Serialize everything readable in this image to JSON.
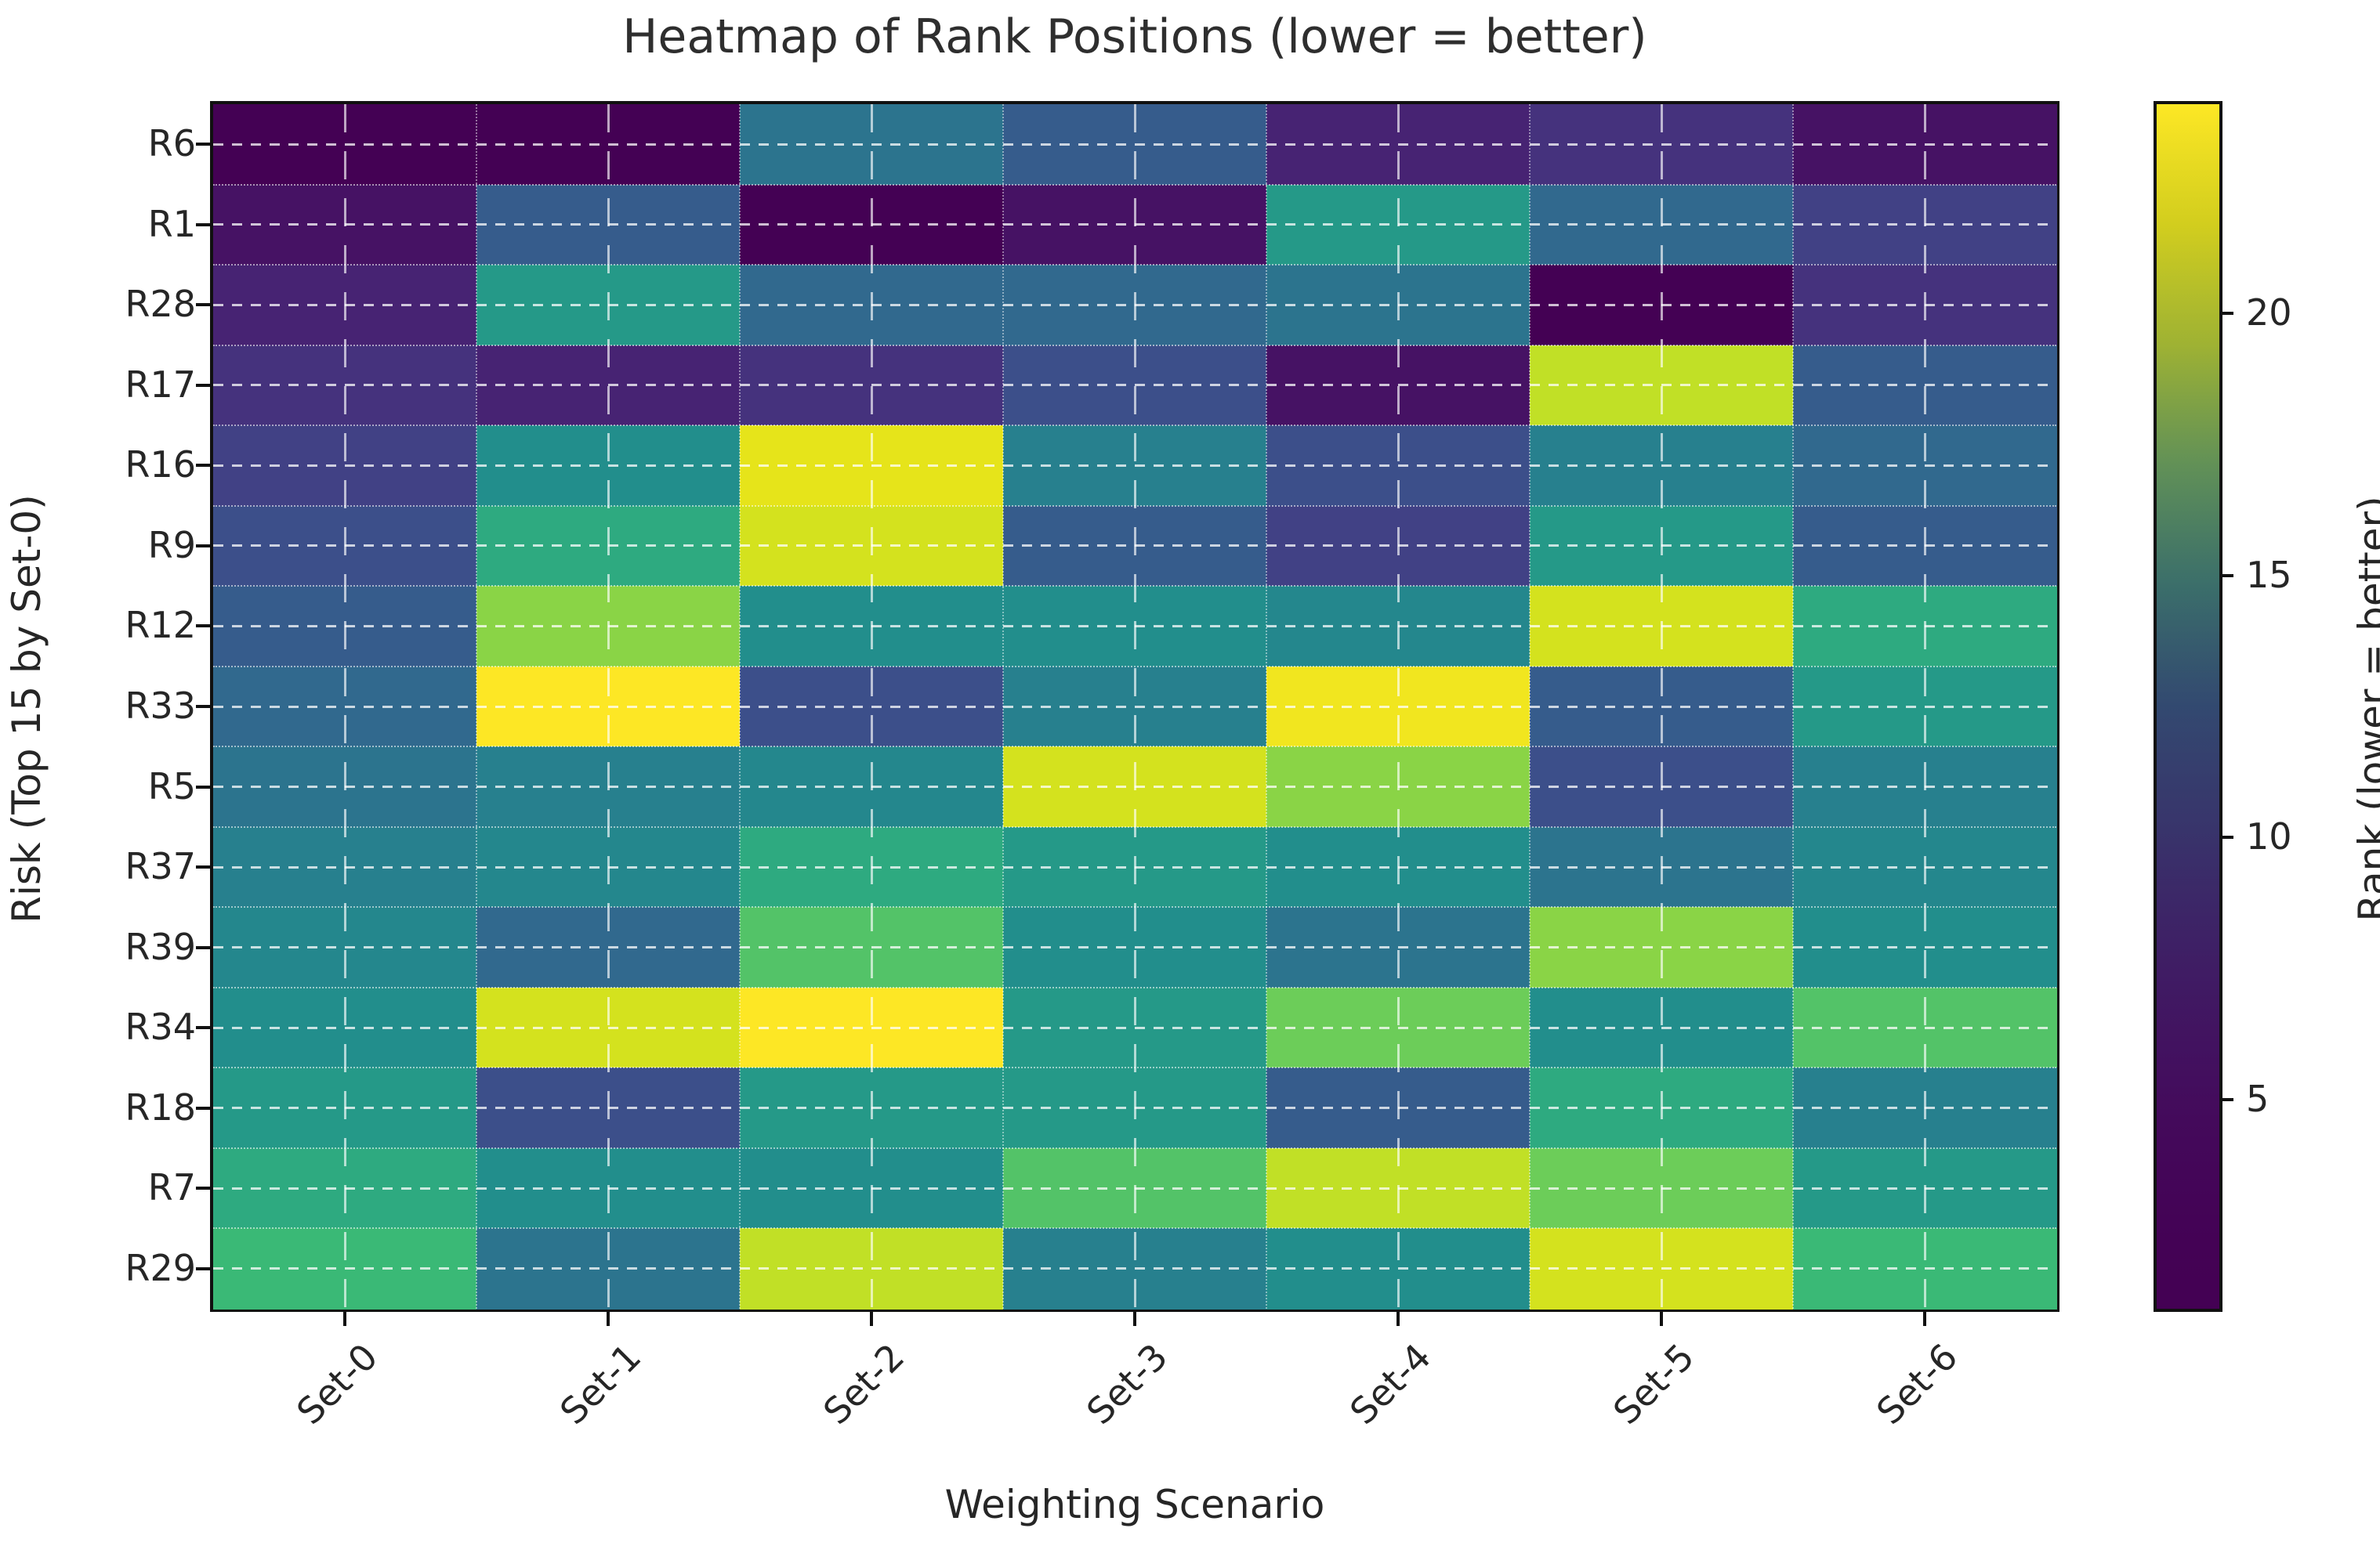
{
  "chart_data": {
    "type": "heatmap",
    "title": "Heatmap of Rank Positions (lower = better)",
    "xlabel": "Weighting Scenario",
    "ylabel": "Risk (Top 15 by Set-0)",
    "colormap": "viridis",
    "grid": true,
    "vmin": 1,
    "vmax": 24,
    "x_categories": [
      "Set-0",
      "Set-1",
      "Set-2",
      "Set-3",
      "Set-4",
      "Set-5",
      "Set-6"
    ],
    "y_categories": [
      "R6",
      "R1",
      "R28",
      "R17",
      "R16",
      "R9",
      "R12",
      "R33",
      "R5",
      "R37",
      "R39",
      "R34",
      "R18",
      "R7",
      "R29"
    ],
    "values": [
      [
        1,
        1,
        9,
        7,
        3,
        4,
        2
      ],
      [
        2,
        7,
        1,
        2,
        13,
        8,
        5
      ],
      [
        3,
        13,
        8,
        8,
        9,
        1,
        4
      ],
      [
        4,
        3,
        4,
        6,
        2,
        20,
        7
      ],
      [
        5,
        12,
        22,
        10,
        6,
        10,
        8
      ],
      [
        6,
        14,
        21,
        7,
        5,
        13,
        7
      ],
      [
        7,
        18,
        12,
        12,
        11,
        21,
        14
      ],
      [
        8,
        24,
        6,
        10,
        23,
        7,
        13
      ],
      [
        9,
        10,
        11,
        21,
        18,
        6,
        10
      ],
      [
        10,
        11,
        14,
        13,
        12,
        9,
        11
      ],
      [
        11,
        8,
        16,
        12,
        9,
        18,
        12
      ],
      [
        12,
        21,
        24,
        13,
        17,
        12,
        16
      ],
      [
        13,
        6,
        13,
        13,
        7,
        14,
        10
      ],
      [
        14,
        12,
        12,
        16,
        20,
        17,
        13
      ],
      [
        15,
        9,
        20,
        10,
        12,
        21,
        15
      ]
    ],
    "colorbar": {
      "label": "Rank (lower = better)",
      "ticks": [
        5,
        10,
        15,
        20
      ]
    }
  }
}
